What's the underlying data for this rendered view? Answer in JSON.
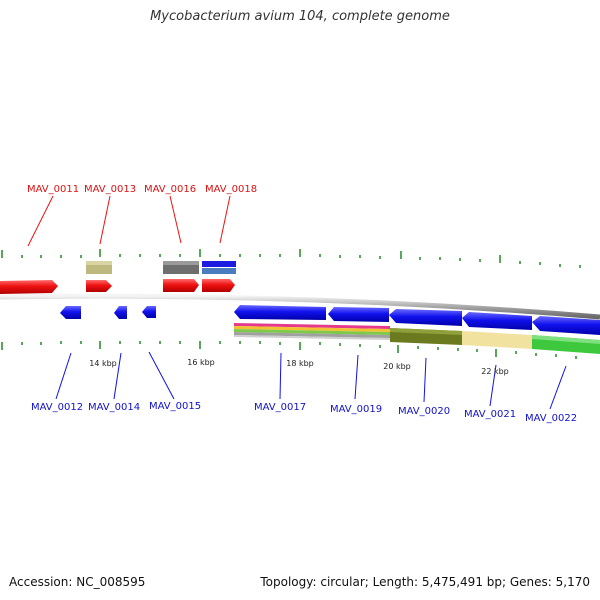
{
  "title": "Mycobacterium avium 104, complete genome",
  "footer": {
    "accession": "Accession: NC_008595",
    "info": "Topology: circular; Length: 5,475,491 bp; Genes: 5,170"
  },
  "colors": {
    "forward_gene": "#ee1111",
    "reverse_gene": "#1111ee",
    "tick": "#1f8c1f",
    "backbone": "#808080"
  },
  "top_labels": [
    "MAV_0011",
    "MAV_0013",
    "MAV_0016",
    "MAV_0018"
  ],
  "bottom_labels": [
    "MAV_0012",
    "MAV_0014",
    "MAV_0015",
    "MAV_0017",
    "MAV_0019",
    "MAV_0020",
    "MAV_0021",
    "MAV_0022"
  ],
  "scale_labels": [
    "14 kbp",
    "16 kbp",
    "18 kbp",
    "20 kbp",
    "22 kbp"
  ]
}
